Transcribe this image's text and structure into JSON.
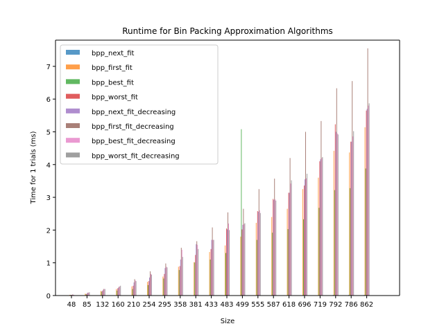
{
  "chart_data": {
    "type": "bar",
    "title": "Runtime for Bin Packing Approximation Algorithms",
    "xlabel": "Size",
    "ylabel": "Time for 1 trials (ms)",
    "ylim": [
      0,
      7.8
    ],
    "yticks": [
      0,
      1,
      2,
      3,
      4,
      5,
      6,
      7
    ],
    "grid": false,
    "legend_position": "top-left",
    "categories": [
      "48",
      "85",
      "132",
      "160",
      "210",
      "254",
      "295",
      "358",
      "381",
      "433",
      "483",
      "499",
      "555",
      "587",
      "618",
      "696",
      "719",
      "792",
      "786",
      "862"
    ],
    "series": [
      {
        "name": "bpp_next_fit",
        "color": "#1f77b4",
        "values": [
          0.0,
          0.0,
          0.0,
          0.0,
          0.0,
          0.0,
          0.01,
          0.01,
          0.01,
          0.01,
          0.01,
          0.01,
          0.01,
          0.01,
          0.01,
          0.01,
          0.01,
          0.02,
          0.02,
          0.02
        ]
      },
      {
        "name": "bpp_first_fit",
        "color": "#ff7f0e",
        "values": [
          0.02,
          0.06,
          0.14,
          0.2,
          0.28,
          0.42,
          0.58,
          0.88,
          1.02,
          1.33,
          1.53,
          1.8,
          2.22,
          2.4,
          2.65,
          3.25,
          3.6,
          4.42,
          4.37,
          5.14
        ]
      },
      {
        "name": "bpp_best_fit",
        "color": "#2ca02c",
        "values": [
          0.02,
          0.04,
          0.12,
          0.15,
          0.2,
          0.32,
          0.52,
          0.78,
          1.01,
          1.1,
          1.3,
          5.08,
          1.7,
          1.92,
          2.03,
          2.33,
          2.68,
          3.22,
          3.28,
          3.88
        ]
      },
      {
        "name": "bpp_worst_fit",
        "color": "#d62728",
        "values": [
          0.02,
          0.05,
          0.14,
          0.22,
          0.3,
          0.44,
          0.66,
          0.9,
          1.24,
          1.42,
          2.05,
          2.02,
          2.58,
          2.95,
          3.14,
          3.36,
          4.1,
          5.23,
          4.7,
          5.65
        ]
      },
      {
        "name": "bpp_next_fit_decreasing",
        "color": "#9467bd",
        "values": [
          0.02,
          0.08,
          0.16,
          0.24,
          0.4,
          0.55,
          0.84,
          1.1,
          1.57,
          1.7,
          2.02,
          2.16,
          2.56,
          2.92,
          3.14,
          3.55,
          4.16,
          5.0,
          4.7,
          5.7
        ]
      },
      {
        "name": "bpp_first_fit_decreasing",
        "color": "#8c564b",
        "values": [
          0.03,
          0.09,
          0.2,
          0.27,
          0.5,
          0.74,
          0.98,
          1.46,
          1.66,
          2.08,
          2.54,
          2.65,
          3.25,
          3.57,
          4.2,
          5.0,
          5.33,
          6.33,
          6.55,
          7.55
        ]
      },
      {
        "name": "bpp_best_fit_decreasing",
        "color": "#e377c2",
        "values": [
          0.03,
          0.09,
          0.2,
          0.28,
          0.46,
          0.66,
          0.88,
          1.4,
          1.55,
          1.7,
          2.2,
          2.18,
          2.6,
          2.94,
          3.42,
          3.58,
          4.2,
          4.95,
          4.86,
          5.8
        ]
      },
      {
        "name": "bpp_worst_fit_decreasing",
        "color": "#7f7f7f",
        "values": [
          0.02,
          0.1,
          0.2,
          0.3,
          0.44,
          0.64,
          0.86,
          1.18,
          1.42,
          1.7,
          2.0,
          2.21,
          2.52,
          2.9,
          3.52,
          3.72,
          4.23,
          4.92,
          5.02,
          5.87
        ]
      }
    ]
  }
}
